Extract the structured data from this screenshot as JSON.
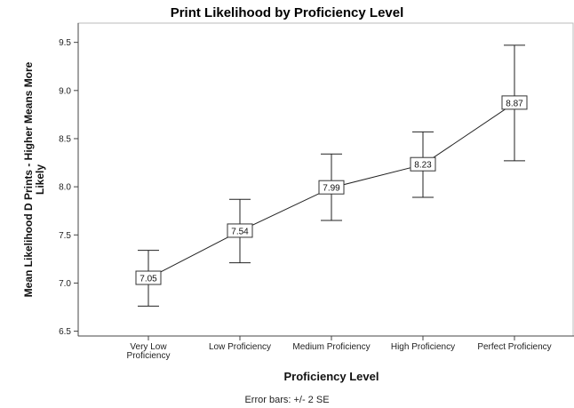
{
  "chart_data": {
    "type": "line",
    "title": "Print Likelihood by Proficiency Level",
    "xlabel": "Proficiency Level",
    "ylabel_lines": [
      "Mean Likelihood D Prints - Higher Means More",
      "Likely"
    ],
    "categories": [
      [
        "Very Low",
        "Proficiency"
      ],
      [
        "Low Proficiency"
      ],
      [
        "Medium Proficiency"
      ],
      [
        "High Proficiency"
      ],
      [
        "Perfect Proficiency"
      ]
    ],
    "values": [
      7.05,
      7.54,
      7.99,
      8.23,
      8.87
    ],
    "value_labels": [
      "7.05",
      "7.54",
      "7.99",
      "8.23",
      "8.87"
    ],
    "error_low": [
      6.76,
      7.21,
      7.65,
      7.89,
      8.27
    ],
    "error_high": [
      7.34,
      7.87,
      8.34,
      8.57,
      9.47
    ],
    "ylim": [
      6.45,
      9.7
    ],
    "yticks": [
      6.5,
      7.0,
      7.5,
      8.0,
      8.5,
      9.0,
      9.5
    ],
    "ytick_labels": [
      "6.5",
      "7.0",
      "7.5",
      "8.0",
      "8.5",
      "9.0",
      "9.5"
    ],
    "grid": false,
    "colors": {
      "line": "#222222",
      "axis": "#444444",
      "frame": "#bbbbbb"
    }
  },
  "footnote": "Error bars: +/- 2 SE"
}
